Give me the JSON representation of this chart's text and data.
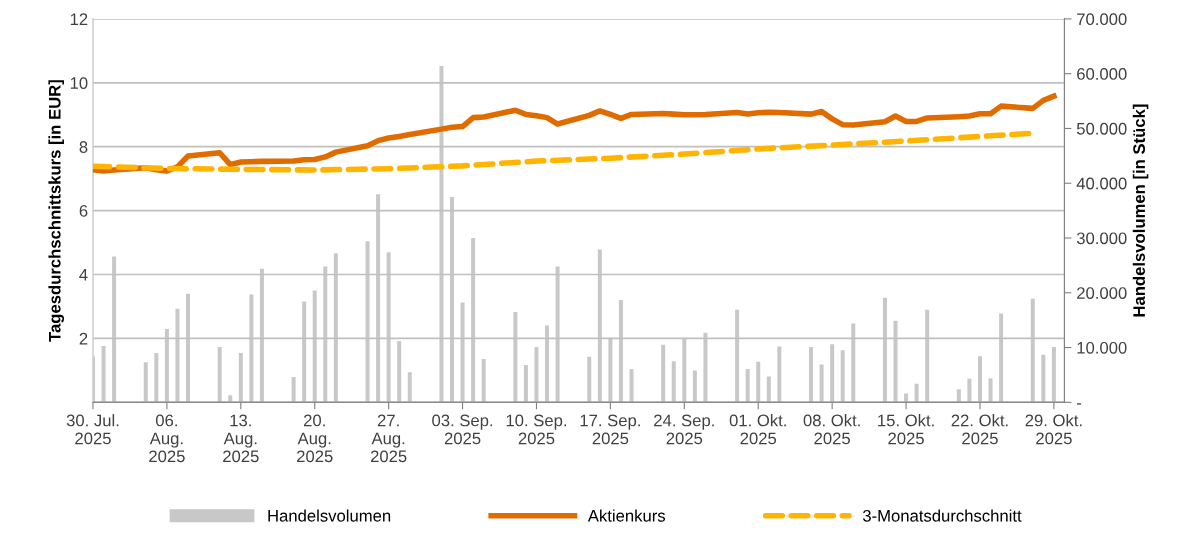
{
  "chart_data": {
    "type": "bar",
    "ylabel": "Tagesdurchschnittskurs [in EUR]",
    "y2label": "Handelsvolumen [in Stück]",
    "x": [
      "2025-07-30",
      "2025-07-31",
      "2025-08-01",
      "2025-08-04",
      "2025-08-05",
      "2025-08-06",
      "2025-08-07",
      "2025-08-08",
      "2025-08-11",
      "2025-08-12",
      "2025-08-13",
      "2025-08-14",
      "2025-08-15",
      "2025-08-18",
      "2025-08-19",
      "2025-08-20",
      "2025-08-21",
      "2025-08-22",
      "2025-08-25",
      "2025-08-26",
      "2025-08-27",
      "2025-08-28",
      "2025-08-29",
      "2025-09-01",
      "2025-09-02",
      "2025-09-03",
      "2025-09-04",
      "2025-09-05",
      "2025-09-08",
      "2025-09-09",
      "2025-09-10",
      "2025-09-11",
      "2025-09-12",
      "2025-09-15",
      "2025-09-16",
      "2025-09-17",
      "2025-09-18",
      "2025-09-19",
      "2025-09-22",
      "2025-09-23",
      "2025-09-24",
      "2025-09-25",
      "2025-09-26",
      "2025-09-29",
      "2025-09-30",
      "2025-10-01",
      "2025-10-02",
      "2025-10-03",
      "2025-10-06",
      "2025-10-07",
      "2025-10-08",
      "2025-10-09",
      "2025-10-10",
      "2025-10-13",
      "2025-10-14",
      "2025-10-15",
      "2025-10-16",
      "2025-10-17",
      "2025-10-20",
      "2025-10-21",
      "2025-10-22",
      "2025-10-23",
      "2025-10-24",
      "2025-10-27",
      "2025-10-28",
      "2025-10-29"
    ],
    "series": [
      {
        "name": "Handelsvolumen",
        "axis": "y2",
        "color": "#c8c8c8",
        "values": [
          8400,
          10300,
          26600,
          7300,
          9000,
          13400,
          17100,
          19800,
          10100,
          1300,
          9000,
          19700,
          24400,
          4600,
          18400,
          20400,
          24800,
          27200,
          29400,
          38000,
          27400,
          11200,
          5500,
          61400,
          37500,
          18200,
          30000,
          7900,
          16500,
          6800,
          10100,
          14000,
          24800,
          8300,
          27900,
          11800,
          18700,
          6100,
          10500,
          7500,
          11800,
          5800,
          12700,
          16900,
          6100,
          7400,
          4700,
          10200,
          10100,
          6900,
          10600,
          9500,
          14400,
          19100,
          14900,
          1600,
          3400,
          16900,
          2400,
          4300,
          8400,
          4400,
          16200,
          18900,
          8700,
          10100
        ]
      },
      {
        "name": "Aktienkurs",
        "type": "line",
        "axis": "y",
        "color": "#e06c00",
        "line_style": "solid",
        "values": [
          7.28,
          7.24,
          7.27,
          7.34,
          7.28,
          7.24,
          7.37,
          7.71,
          7.81,
          7.44,
          7.52,
          7.53,
          7.54,
          7.55,
          7.59,
          7.6,
          7.68,
          7.83,
          8.03,
          8.19,
          8.27,
          8.32,
          8.38,
          8.55,
          8.61,
          8.63,
          8.91,
          8.93,
          9.14,
          9.01,
          8.97,
          8.91,
          8.71,
          8.98,
          9.12,
          9.01,
          8.89,
          9.01,
          9.04,
          9.02,
          9.0,
          9.0,
          9.01,
          9.07,
          9.02,
          9.06,
          9.08,
          9.07,
          9.02,
          9.1,
          8.87,
          8.69,
          8.68,
          8.78,
          8.96,
          8.79,
          8.79,
          8.9,
          8.94,
          8.96,
          9.03,
          9.03,
          9.27,
          9.2,
          9.45,
          9.58
        ]
      },
      {
        "name": "3-Monatsdurchschnitt",
        "type": "line",
        "axis": "y",
        "color": "#ffb400",
        "line_style": "dashed",
        "x": [
          "2025-07-30",
          "2025-08-06",
          "2025-08-13",
          "2025-08-20",
          "2025-08-27",
          "2025-09-03",
          "2025-09-10",
          "2025-09-17",
          "2025-09-24",
          "2025-10-01",
          "2025-10-08",
          "2025-10-15",
          "2025-10-22",
          "2025-10-27"
        ],
        "values": [
          7.39,
          7.32,
          7.29,
          7.27,
          7.31,
          7.4,
          7.55,
          7.64,
          7.77,
          7.93,
          8.05,
          8.18,
          8.32,
          8.42
        ]
      }
    ],
    "xlim": [
      "2025-07-30",
      "2025-10-30"
    ],
    "xticks": [
      {
        "value": "2025-07-30",
        "label": "30. Jul.\n2025"
      },
      {
        "value": "2025-08-06",
        "label": "06.\nAug.\n2025"
      },
      {
        "value": "2025-08-13",
        "label": "13.\nAug.\n2025"
      },
      {
        "value": "2025-08-20",
        "label": "20.\nAug.\n2025"
      },
      {
        "value": "2025-08-27",
        "label": "27.\nAug.\n2025"
      },
      {
        "value": "2025-09-03",
        "label": "03. Sep.\n2025"
      },
      {
        "value": "2025-09-10",
        "label": "10. Sep.\n2025"
      },
      {
        "value": "2025-09-17",
        "label": "17. Sep.\n2025"
      },
      {
        "value": "2025-09-24",
        "label": "24. Sep.\n2025"
      },
      {
        "value": "2025-10-01",
        "label": "01. Okt.\n2025"
      },
      {
        "value": "2025-10-08",
        "label": "08. Okt.\n2025"
      },
      {
        "value": "2025-10-15",
        "label": "15. Okt.\n2025"
      },
      {
        "value": "2025-10-22",
        "label": "22. Okt.\n2025"
      },
      {
        "value": "2025-10-29",
        "label": "29. Okt.\n2025"
      }
    ],
    "ylim": [
      0,
      12
    ],
    "yticks": [
      {
        "value": 0,
        "label": null
      },
      2,
      4,
      6,
      8,
      10,
      12
    ],
    "y2lim": [
      0,
      70000
    ],
    "y2ticks": [
      {
        "value": 0,
        "label": "-"
      },
      {
        "value": 10000,
        "label": "10.000"
      },
      {
        "value": 20000,
        "label": "20.000"
      },
      {
        "value": 30000,
        "label": "30.000"
      },
      {
        "value": 40000,
        "label": "40.000"
      },
      {
        "value": 50000,
        "label": "50.000"
      },
      {
        "value": 60000,
        "label": "60.000"
      },
      {
        "value": 70000,
        "label": "70.000"
      }
    ],
    "grid": "y",
    "legend": "bottom"
  }
}
